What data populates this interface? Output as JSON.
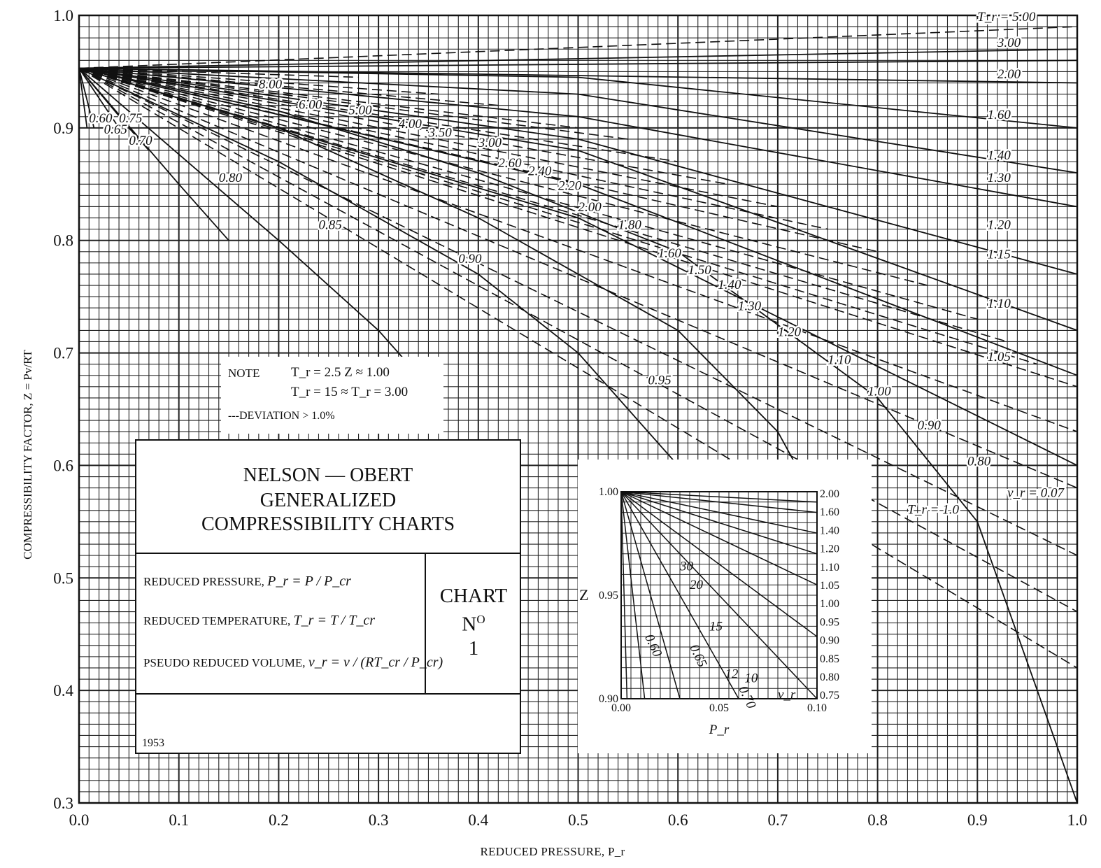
{
  "chart_data": {
    "type": "line",
    "x_axis": {
      "label": "REDUCED PRESSURE, P_r",
      "range": [
        0.0,
        1.0
      ],
      "ticks": [
        "0.0",
        "0.1",
        "0.2",
        "0.3",
        "0.4",
        "0.5",
        "0.6",
        "0.7",
        "0.8",
        "0.9",
        "1.0"
      ]
    },
    "y_axis": {
      "label": "COMPRESSIBILITY FACTOR, Z = Pv/RT",
      "range": [
        0.3,
        1.0
      ],
      "ticks": [
        "1.0",
        "0.9",
        "0.8",
        "0.7",
        "0.6",
        "0.5",
        "0.4",
        "0.3"
      ]
    },
    "grid": true,
    "isotherms_label": "T_r",
    "isotherms": [
      {
        "name": "0.60",
        "x": [
          0,
          0.008
        ],
        "y": [
          0.953,
          0.9
        ]
      },
      {
        "name": "0.65",
        "x": [
          0,
          0.015
        ],
        "y": [
          0.953,
          0.9
        ]
      },
      {
        "name": "0.70",
        "x": [
          0,
          0.05,
          0.07
        ],
        "y": [
          0.953,
          0.9,
          0.88
        ]
      },
      {
        "name": "0.75",
        "x": [
          0,
          0.04
        ],
        "y": [
          0.953,
          0.9
        ]
      },
      {
        "name": "0.80",
        "x": [
          0,
          0.1,
          0.15
        ],
        "y": [
          0.953,
          0.85,
          0.8
        ]
      },
      {
        "name": "0.85",
        "x": [
          0,
          0.2,
          0.3,
          0.35
        ],
        "y": [
          0.953,
          0.8,
          0.72,
          0.67
        ]
      },
      {
        "name": "0.90",
        "x": [
          0,
          0.2,
          0.4,
          0.5,
          0.6,
          0.667
        ],
        "y": [
          0.953,
          0.87,
          0.77,
          0.7,
          0.6,
          0.48
        ]
      },
      {
        "name": "0.95",
        "x": [
          0,
          0.2,
          0.4,
          0.6,
          0.7,
          0.78
        ],
        "y": [
          0.953,
          0.9,
          0.82,
          0.72,
          0.63,
          0.5
        ]
      },
      {
        "name": "1.0",
        "x": [
          0,
          0.2,
          0.4,
          0.6,
          0.8,
          0.9,
          1.0
        ],
        "y": [
          0.953,
          0.915,
          0.86,
          0.79,
          0.66,
          0.55,
          0.3
        ]
      },
      {
        "name": "1.05",
        "x": [
          0,
          0.5,
          1.0
        ],
        "y": [
          0.953,
          0.82,
          0.6
        ]
      },
      {
        "name": "1.10",
        "x": [
          0,
          0.5,
          1.0
        ],
        "y": [
          0.953,
          0.85,
          0.68
        ]
      },
      {
        "name": "1.15",
        "x": [
          0,
          0.5,
          1.0
        ],
        "y": [
          0.953,
          0.88,
          0.72
        ]
      },
      {
        "name": "1.20",
        "x": [
          0,
          0.5,
          1.0
        ],
        "y": [
          0.953,
          0.89,
          0.77
        ]
      },
      {
        "name": "1.30",
        "x": [
          0,
          0.5,
          1.0
        ],
        "y": [
          0.953,
          0.91,
          0.83
        ]
      },
      {
        "name": "1.40",
        "x": [
          0,
          0.5,
          1.0
        ],
        "y": [
          0.953,
          0.93,
          0.86
        ]
      },
      {
        "name": "1.60",
        "x": [
          0,
          0.5,
          1.0
        ],
        "y": [
          0.953,
          0.945,
          0.9
        ]
      },
      {
        "name": "2.00",
        "x": [
          0,
          1.0
        ],
        "y": [
          0.953,
          0.94
        ]
      },
      {
        "name": "3.00",
        "x": [
          0,
          1.0
        ],
        "y": [
          0.953,
          0.96
        ]
      },
      {
        "name": "5.00",
        "x": [
          0,
          1.0
        ],
        "y": [
          0.953,
          0.97
        ]
      }
    ],
    "isotherm_labels": [
      "T_r = 5.00",
      "3.00",
      "2.00",
      "1.60",
      "1.40",
      "1.30",
      "1.20",
      "1.15",
      "1.10",
      "1.05",
      "T_r = 1.0",
      "0.95",
      "0.90",
      "0.85",
      "0.80",
      "0.75",
      "0.70",
      "0.65",
      "0.60"
    ],
    "volume_lines_label": "v_r",
    "volume_labels": [
      "8.00",
      "6.00",
      "5.00",
      "4.00",
      "3.50",
      "3.00",
      "2.60",
      "2.40",
      "2.20",
      "2.00",
      "1.80",
      "1.60",
      "1.50",
      "1.40",
      "1.30",
      "1.20",
      "1.10",
      "1.00",
      "0.90",
      "0.80",
      "v_r = 0.07"
    ],
    "note": {
      "title": "NOTE",
      "line1": "T_r = 2.5   Z ≈ 1.00",
      "line2": "T_r = 15 ≈ T_r = 3.00",
      "line3": "---DEVIATION > 1.0%"
    },
    "title_block": {
      "title_lines": [
        "NELSON — OBERT",
        "GENERALIZED",
        "COMPRESSIBILITY CHARTS"
      ],
      "def_pressure": "REDUCED PRESSURE,",
      "def_pressure_formula": "P_r = P / P_cr",
      "def_temperature": "REDUCED TEMPERATURE,",
      "def_temperature_formula": "T_r = T / T_cr",
      "def_volume": "PSEUDO REDUCED VOLUME,",
      "def_volume_formula": "v_r = v / (RT_cr / P_cr)",
      "chart_word": "CHART",
      "chart_no": "N",
      "chart_no_sup": "O",
      "chart_num": "1",
      "year": "1953"
    },
    "inset": {
      "x_label": "P_r",
      "y_label": "Z",
      "x_ticks": [
        "0.00",
        "0.05",
        "0.10"
      ],
      "y_ticks": [
        "1.00",
        "0.95",
        "0.90"
      ],
      "x_range": [
        0.0,
        0.1
      ],
      "y_range": [
        0.9,
        1.0
      ],
      "right_labels": [
        "2.00",
        "1.60",
        "1.40",
        "1.20",
        "1.10",
        "1.05",
        "1.00",
        "0.95",
        "0.90",
        "0.85",
        "0.80",
        "0.75"
      ],
      "volume_labels": [
        "30",
        "20",
        "15",
        "12",
        "10",
        "v_r"
      ],
      "isotherm_labels": [
        "0.60",
        "0.65",
        "0.70"
      ]
    }
  }
}
